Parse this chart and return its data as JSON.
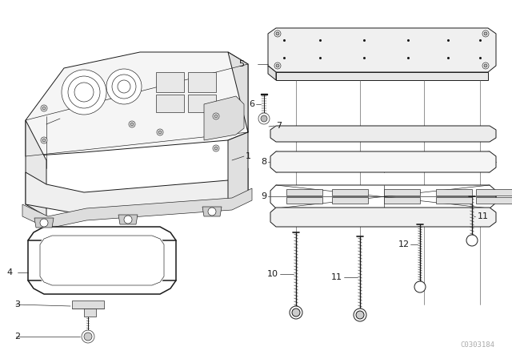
{
  "bg": "#ffffff",
  "lc": "#1a1a1a",
  "lc_thin": "#333333",
  "lc_gray": "#888888",
  "fig_w": 6.4,
  "fig_h": 4.48,
  "dpi": 100,
  "watermark": "C0303184",
  "wm_color": "#aaaaaa"
}
